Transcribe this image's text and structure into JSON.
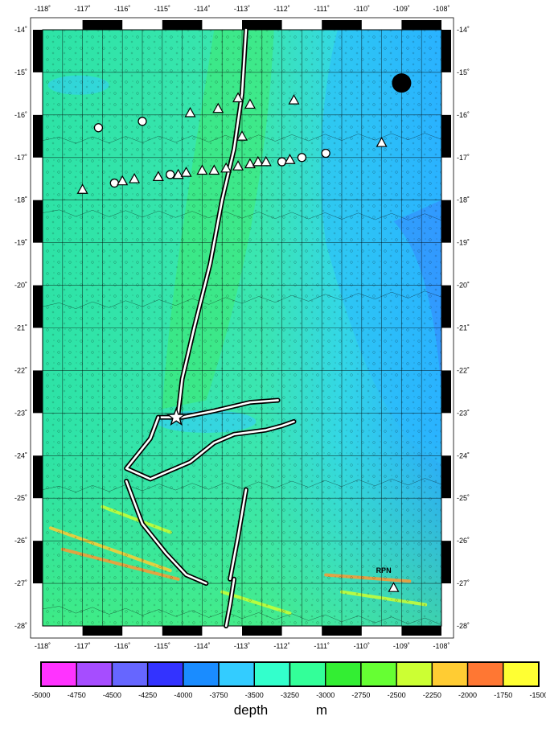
{
  "map": {
    "lon_range": [
      -118,
      -108
    ],
    "lat_range": [
      -28,
      -14
    ],
    "lon_ticks": [
      "-118˚",
      "-117˚",
      "-116˚",
      "-115˚",
      "-114˚",
      "-113˚",
      "-112˚",
      "-111˚",
      "-110˚",
      "-109˚",
      "-108˚"
    ],
    "lat_ticks": [
      "-14˚",
      "-15˚",
      "-16˚",
      "-17˚",
      "-18˚",
      "-19˚",
      "-20˚",
      "-21˚",
      "-22˚",
      "-23˚",
      "-24˚",
      "-25˚",
      "-26˚",
      "-27˚",
      "-28˚"
    ],
    "site_label": "RPN",
    "ridge_axes": [
      [
        [
          -112.9,
          -14.0
        ],
        [
          -113.0,
          -15.5
        ],
        [
          -113.2,
          -16.8
        ],
        [
          -113.5,
          -18.0
        ],
        [
          -113.8,
          -19.5
        ],
        [
          -114.2,
          -21.0
        ],
        [
          -114.5,
          -22.2
        ],
        [
          -114.6,
          -23.0
        ]
      ],
      [
        [
          -112.1,
          -22.7
        ],
        [
          -112.8,
          -22.75
        ],
        [
          -113.7,
          -22.95
        ],
        [
          -114.5,
          -23.1
        ],
        [
          -115.1,
          -23.1
        ]
      ],
      [
        [
          -115.1,
          -23.1
        ],
        [
          -115.3,
          -23.6
        ],
        [
          -115.9,
          -24.3
        ],
        [
          -115.3,
          -24.55
        ],
        [
          -114.3,
          -24.15
        ],
        [
          -113.7,
          -23.7
        ],
        [
          -113.2,
          -23.5
        ],
        [
          -112.4,
          -23.4
        ],
        [
          -112.0,
          -23.3
        ],
        [
          -111.7,
          -23.2
        ]
      ],
      [
        [
          -115.9,
          -24.6
        ],
        [
          -115.5,
          -25.6
        ],
        [
          -114.9,
          -26.3
        ],
        [
          -114.4,
          -26.8
        ],
        [
          -113.9,
          -27.0
        ]
      ],
      [
        [
          -112.9,
          -24.8
        ],
        [
          -113.1,
          -25.9
        ],
        [
          -113.3,
          -26.9
        ]
      ],
      [
        [
          -113.2,
          -26.9
        ],
        [
          -113.3,
          -27.5
        ],
        [
          -113.4,
          -28.0
        ]
      ]
    ],
    "circles": [
      {
        "lon": -116.6,
        "lat": -16.3,
        "size": "small"
      },
      {
        "lon": -115.5,
        "lat": -16.15,
        "size": "small"
      },
      {
        "lon": -116.2,
        "lat": -17.6,
        "size": "small"
      },
      {
        "lon": -114.8,
        "lat": -17.4,
        "size": "small"
      },
      {
        "lon": -112.0,
        "lat": -17.1,
        "size": "small"
      },
      {
        "lon": -111.5,
        "lat": -17.0,
        "size": "small"
      },
      {
        "lon": -110.9,
        "lat": -16.9,
        "size": "small"
      },
      {
        "lon": -109.0,
        "lat": -15.25,
        "size": "large"
      }
    ],
    "triangles": [
      {
        "lon": -117.0,
        "lat": -17.75
      },
      {
        "lon": -116.0,
        "lat": -17.55
      },
      {
        "lon": -115.7,
        "lat": -17.5
      },
      {
        "lon": -115.1,
        "lat": -17.45
      },
      {
        "lon": -114.6,
        "lat": -17.4
      },
      {
        "lon": -114.4,
        "lat": -17.35
      },
      {
        "lon": -114.0,
        "lat": -17.3
      },
      {
        "lon": -113.7,
        "lat": -17.3
      },
      {
        "lon": -113.4,
        "lat": -17.25
      },
      {
        "lon": -113.1,
        "lat": -17.2
      },
      {
        "lon": -112.8,
        "lat": -17.15
      },
      {
        "lon": -112.6,
        "lat": -17.1
      },
      {
        "lon": -112.4,
        "lat": -17.1
      },
      {
        "lon": -111.8,
        "lat": -17.05
      },
      {
        "lon": -114.3,
        "lat": -15.95
      },
      {
        "lon": -113.6,
        "lat": -15.85
      },
      {
        "lon": -113.1,
        "lat": -15.6
      },
      {
        "lon": -112.8,
        "lat": -15.75
      },
      {
        "lon": -111.7,
        "lat": -15.65
      },
      {
        "lon": -113.0,
        "lat": -16.5
      },
      {
        "lon": -109.5,
        "lat": -16.65
      },
      {
        "lon": -109.2,
        "lat": -27.1
      }
    ],
    "star": {
      "lon": -114.65,
      "lat": -23.1
    }
  },
  "colorbar": {
    "tick_labels": [
      "-5000",
      "-4750",
      "-4500",
      "-4250",
      "-4000",
      "-3750",
      "-3500",
      "-3250",
      "-3000",
      "-2750",
      "-2500",
      "-2250",
      "-2000",
      "-1750",
      "-1500"
    ],
    "colors": [
      "#ff33ff",
      "#a64dff",
      "#6666ff",
      "#3333ff",
      "#1a8cff",
      "#33ccff",
      "#33ffcc",
      "#33ff99",
      "#33ee33",
      "#66ff33",
      "#ccff33",
      "#ffcc33",
      "#ff7733",
      "#ffff33"
    ],
    "title": "depth",
    "unit": "m"
  },
  "palette": {
    "deep_band": "#2ab9ff",
    "mid_band": "#5de9d7",
    "shallow_band": "#40f0a0",
    "ridge_band": "#44ee44"
  }
}
